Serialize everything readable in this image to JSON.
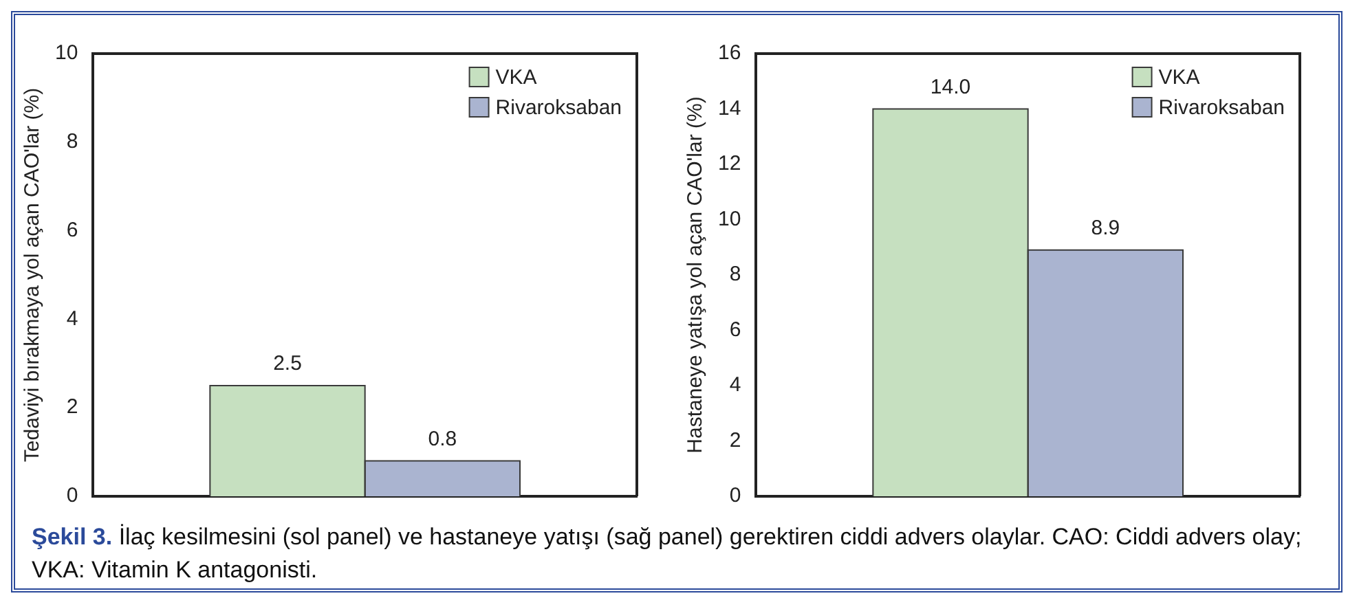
{
  "chart_data": [
    {
      "type": "bar",
      "categories": [
        null
      ],
      "ylabel": "Tedaviyi bırakmaya yol açan CAO'lar (%)",
      "ylim": [
        0,
        10
      ],
      "yticks": [
        0,
        2,
        4,
        6,
        8,
        10
      ],
      "grid": false,
      "legend": "top right",
      "series": [
        {
          "name": "VKA",
          "color": "#c6e0c0",
          "values": [
            2.5
          ],
          "value_labels": [
            "2.5"
          ]
        },
        {
          "name": "Rivaroksaban",
          "color": "#aab4d0",
          "values": [
            0.8
          ],
          "value_labels": [
            "0.8"
          ]
        }
      ],
      "annotations": [
        "Şekil 3.",
        "İlaç kesilmesini (sol panel) ve hastaneye yatışı (sağ panel) gerektiren ciddi advers olaylar. CAO: Ciddi advers olay; VKA: Vitamin K antagonisti."
      ]
    },
    {
      "type": "bar",
      "categories": [
        null
      ],
      "ylabel": "Hastaneye yatışa yol açan CAO'lar (%)",
      "ylim": [
        0,
        16
      ],
      "yticks": [
        0,
        2,
        4,
        6,
        8,
        10,
        12,
        14,
        16
      ],
      "grid": false,
      "legend": "top right",
      "series": [
        {
          "name": "VKA",
          "color": "#c6e0c0",
          "values": [
            14.0
          ],
          "value_labels": [
            "14.0"
          ]
        },
        {
          "name": "Rivaroksaban",
          "color": "#aab4d0",
          "values": [
            8.9
          ],
          "value_labels": [
            "8.9"
          ]
        }
      ]
    }
  ]
}
